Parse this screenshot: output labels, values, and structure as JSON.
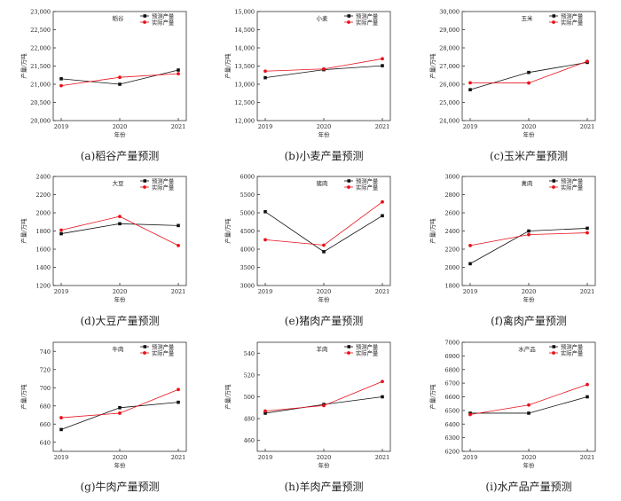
{
  "legend": {
    "predicted": "预测产量",
    "actual": "实际产量"
  },
  "colors": {
    "predicted": "#111111",
    "actual": "#e8101a",
    "frame": "#333333"
  },
  "x_categories": [
    "2019",
    "2020",
    "2021"
  ],
  "xlabel": "年份",
  "ylabel": "产量/万吨",
  "chart_data": [
    {
      "type": "line",
      "title": "稻谷",
      "caption": "(a)稻谷产量预测",
      "ylim": [
        20000,
        23000
      ],
      "yticks": [
        20000,
        20500,
        21000,
        21500,
        22000,
        22500,
        23000
      ],
      "ytick_labels": [
        "20,000",
        "20,500",
        "21,000",
        "21,500",
        "22,000",
        "22,500",
        "23,000"
      ],
      "series": [
        {
          "name": "预测产量",
          "values": [
            21150,
            21000,
            21390
          ]
        },
        {
          "name": "实际产量",
          "values": [
            20960,
            21190,
            21290
          ]
        }
      ]
    },
    {
      "type": "line",
      "title": "小麦",
      "caption": "(b)小麦产量预测",
      "ylim": [
        12000,
        15000
      ],
      "yticks": [
        12000,
        12500,
        13000,
        13500,
        14000,
        14500,
        15000
      ],
      "ytick_labels": [
        "12,000",
        "12,500",
        "13,000",
        "13,500",
        "14,000",
        "14,500",
        "15,000"
      ],
      "series": [
        {
          "name": "预测产量",
          "values": [
            13180,
            13400,
            13510
          ]
        },
        {
          "name": "实际产量",
          "values": [
            13360,
            13420,
            13700
          ]
        }
      ]
    },
    {
      "type": "line",
      "title": "玉米",
      "caption": "(c)玉米产量预测",
      "ylim": [
        24000,
        30000
      ],
      "yticks": [
        24000,
        25000,
        26000,
        27000,
        28000,
        29000,
        30000
      ],
      "ytick_labels": [
        "24,000",
        "25,000",
        "26,000",
        "27,000",
        "28,000",
        "29,000",
        "30,000"
      ],
      "series": [
        {
          "name": "预测产量",
          "values": [
            25700,
            26650,
            27200
          ]
        },
        {
          "name": "实际产量",
          "values": [
            26080,
            26070,
            27260
          ]
        }
      ]
    },
    {
      "type": "line",
      "title": "大豆",
      "caption": "(d)大豆产量预测",
      "ylim": [
        1200,
        2400
      ],
      "yticks": [
        1200,
        1400,
        1600,
        1800,
        2000,
        2200,
        2400
      ],
      "ytick_labels": [
        "1200",
        "1400",
        "1600",
        "1800",
        "2000",
        "2200",
        "2400"
      ],
      "series": [
        {
          "name": "预测产量",
          "values": [
            1770,
            1880,
            1860
          ]
        },
        {
          "name": "实际产量",
          "values": [
            1810,
            1960,
            1640
          ]
        }
      ]
    },
    {
      "type": "line",
      "title": "猪肉",
      "caption": "(e)猪肉产量预测",
      "ylim": [
        3000,
        6000
      ],
      "yticks": [
        3000,
        3500,
        4000,
        4500,
        5000,
        5500,
        6000
      ],
      "ytick_labels": [
        "3000",
        "3500",
        "4000",
        "4500",
        "5000",
        "5500",
        "6000"
      ],
      "series": [
        {
          "name": "预测产量",
          "values": [
            5030,
            3930,
            4920
          ]
        },
        {
          "name": "实际产量",
          "values": [
            4260,
            4110,
            5300
          ]
        }
      ]
    },
    {
      "type": "line",
      "title": "禽肉",
      "caption": "(f)禽肉产量预测",
      "ylim": [
        1800,
        3000
      ],
      "yticks": [
        1800,
        2000,
        2200,
        2400,
        2600,
        2800,
        3000
      ],
      "ytick_labels": [
        "1800",
        "2000",
        "2200",
        "2400",
        "2600",
        "2800",
        "3000"
      ],
      "series": [
        {
          "name": "预测产量",
          "values": [
            2040,
            2400,
            2430
          ]
        },
        {
          "name": "实际产量",
          "values": [
            2240,
            2360,
            2380
          ]
        }
      ]
    },
    {
      "type": "line",
      "title": "牛肉",
      "caption": "(g)牛肉产量预测",
      "ylim": [
        630,
        750
      ],
      "yticks": [
        640,
        660,
        680,
        700,
        720,
        740
      ],
      "ytick_labels": [
        "640",
        "660",
        "680",
        "700",
        "720",
        "740"
      ],
      "series": [
        {
          "name": "预测产量",
          "values": [
            654,
            678,
            684
          ]
        },
        {
          "name": "实际产量",
          "values": [
            667,
            672,
            698
          ]
        }
      ]
    },
    {
      "type": "line",
      "title": "羊肉",
      "caption": "(h)羊肉产量预测",
      "ylim": [
        450,
        550
      ],
      "yticks": [
        460,
        480,
        500,
        520,
        540
      ],
      "ytick_labels": [
        "460",
        "480",
        "500",
        "520",
        "540"
      ],
      "series": [
        {
          "name": "预测产量",
          "values": [
            485,
            493,
            500
          ]
        },
        {
          "name": "实际产量",
          "values": [
            487,
            492,
            514
          ]
        }
      ]
    },
    {
      "type": "line",
      "title": "水产品",
      "caption": "(i)水产品产量预测",
      "ylim": [
        6200,
        7000
      ],
      "yticks": [
        6200,
        6300,
        6400,
        6500,
        6600,
        6700,
        6800,
        6900,
        7000
      ],
      "ytick_labels": [
        "6200",
        "6300",
        "6400",
        "6500",
        "6600",
        "6700",
        "6800",
        "6900",
        "7000"
      ],
      "series": [
        {
          "name": "预测产量",
          "values": [
            6480,
            6480,
            6600
          ]
        },
        {
          "name": "实际产量",
          "values": [
            6470,
            6540,
            6690
          ]
        }
      ]
    }
  ]
}
